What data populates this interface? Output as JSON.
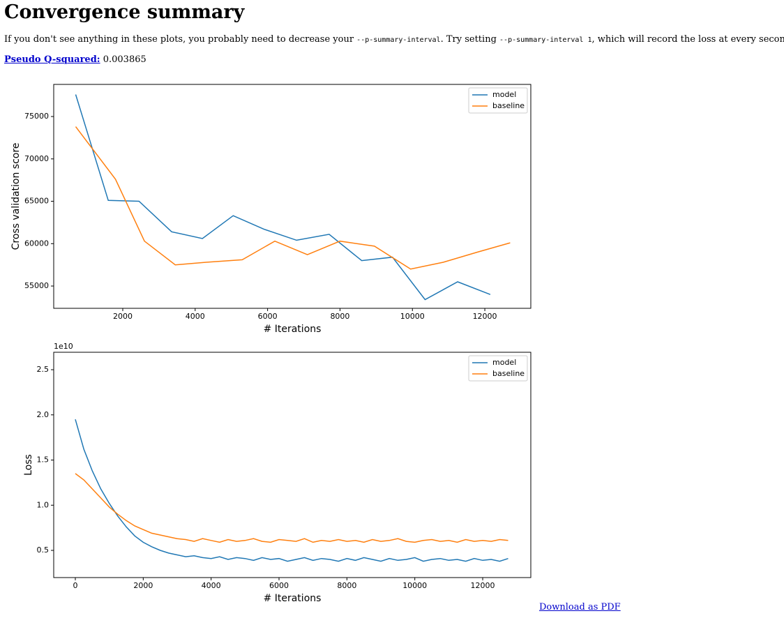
{
  "header": {
    "title": "Convergence summary"
  },
  "intro": [
    "If you don't see anything in these plots, you probably need to decrease your ",
    "--p-summary-interval",
    ". Try setting ",
    "--p-summary-interval 1",
    ", which will record the loss at every second."
  ],
  "q_squared": {
    "label": "Pseudo Q-squared:",
    "value": 0.003865
  },
  "download": "Download as PDF",
  "chart_data": [
    {
      "type": "line",
      "xlabel": "# Iterations",
      "ylabel": "Cross validation score",
      "legend": "upper right",
      "grid": false,
      "xlim": [
        93,
        13270
      ],
      "ylim": [
        52370,
        78790
      ],
      "xticks": [
        2000,
        4000,
        6000,
        8000,
        10000,
        12000
      ],
      "yticks": [
        55000,
        60000,
        65000,
        70000,
        75000
      ],
      "series": [
        {
          "name": "model",
          "color": "#1f77b4",
          "x": [
            700,
            1600,
            2450,
            3350,
            4200,
            5050,
            5900,
            6800,
            7700,
            8600,
            9450,
            10350,
            11250,
            12150
          ],
          "values": [
            77600,
            65100,
            65000,
            61400,
            60600,
            63300,
            61700,
            60400,
            61100,
            58000,
            58400,
            53400,
            55500,
            54000
          ]
        },
        {
          "name": "baseline",
          "color": "#ff7f0e",
          "x": [
            700,
            1800,
            2600,
            3450,
            4300,
            5300,
            6200,
            7100,
            8000,
            8950,
            9950,
            10850,
            11800,
            12700
          ],
          "values": [
            73800,
            67600,
            60300,
            57500,
            57800,
            58100,
            60300,
            58700,
            60300,
            59700,
            57000,
            57800,
            59000,
            60100
          ]
        }
      ]
    },
    {
      "type": "line",
      "xlabel": "# Iterations",
      "ylabel": "Loss",
      "offset_label": "1e10",
      "legend": "upper right",
      "grid": false,
      "xlim": [
        -637,
        13417
      ],
      "ylim": [
        0.199,
        2.693
      ],
      "xticks": [
        0,
        2000,
        4000,
        6000,
        8000,
        10000,
        12000
      ],
      "yticks": [
        0.5,
        {
          "value": 1,
          "label": "1.0"
        },
        1.5,
        {
          "value": 2,
          "label": "2.0"
        },
        2.5
      ],
      "x": [
        0,
        250,
        500,
        750,
        1000,
        1250,
        1500,
        1750,
        2000,
        2250,
        2500,
        2750,
        3000,
        3250,
        3500,
        3750,
        4000,
        4250,
        4500,
        4750,
        5000,
        5250,
        5500,
        5750,
        6000,
        6250,
        6500,
        6750,
        7000,
        7250,
        7500,
        7750,
        8000,
        8250,
        8500,
        8750,
        9000,
        9250,
        9500,
        9750,
        10000,
        10250,
        10500,
        10750,
        11000,
        11250,
        11500,
        11750,
        12000,
        12250,
        12500,
        12750
      ],
      "series": [
        {
          "name": "model",
          "color": "#1f77b4",
          "values": [
            1.95,
            1.62,
            1.38,
            1.18,
            1.02,
            0.88,
            0.76,
            0.66,
            0.59,
            0.54,
            0.5,
            0.47,
            0.45,
            0.43,
            0.44,
            0.42,
            0.41,
            0.43,
            0.4,
            0.42,
            0.41,
            0.39,
            0.42,
            0.4,
            0.41,
            0.38,
            0.4,
            0.42,
            0.39,
            0.41,
            0.4,
            0.38,
            0.41,
            0.39,
            0.42,
            0.4,
            0.38,
            0.41,
            0.39,
            0.4,
            0.42,
            0.38,
            0.4,
            0.41,
            0.39,
            0.4,
            0.38,
            0.41,
            0.39,
            0.4,
            0.38,
            0.41
          ]
        },
        {
          "name": "baseline",
          "color": "#ff7f0e",
          "values": [
            1.35,
            1.28,
            1.18,
            1.08,
            0.98,
            0.9,
            0.83,
            0.77,
            0.73,
            0.69,
            0.67,
            0.65,
            0.63,
            0.62,
            0.6,
            0.63,
            0.61,
            0.59,
            0.62,
            0.6,
            0.61,
            0.63,
            0.6,
            0.59,
            0.62,
            0.61,
            0.6,
            0.63,
            0.59,
            0.61,
            0.6,
            0.62,
            0.6,
            0.61,
            0.59,
            0.62,
            0.6,
            0.61,
            0.63,
            0.6,
            0.59,
            0.61,
            0.62,
            0.6,
            0.61,
            0.59,
            0.62,
            0.6,
            0.61,
            0.6,
            0.62,
            0.61
          ]
        }
      ]
    }
  ]
}
